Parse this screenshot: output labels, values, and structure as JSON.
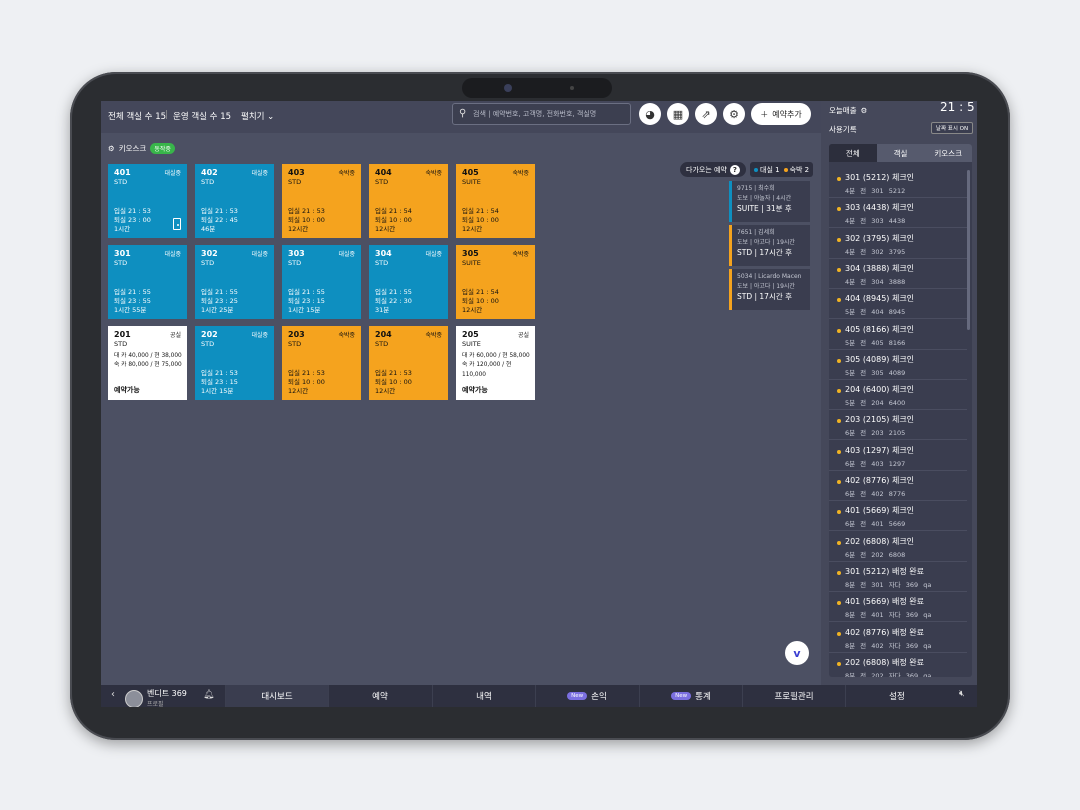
{
  "topbar": {
    "total_rooms": "전체 객실 수 15",
    "active_rooms": "운영 객실 수 15",
    "expand": "펼치기",
    "search_placeholder": "검색 | 예약번호, 고객명, 전화번호, 객실명",
    "add_reservation": "예약추가"
  },
  "kiosk": {
    "label": "키오스크",
    "badge": "동작중"
  },
  "tiles": [
    {
      "num": "401",
      "status": "대실중",
      "type": "STD",
      "color": "blue",
      "line1": "입실 21 : 53",
      "line2": "퇴실 23 : 00",
      "line3": "1시간",
      "door": true
    },
    {
      "num": "402",
      "status": "대실중",
      "type": "STD",
      "color": "blue",
      "line1": "입실 21 : 53",
      "line2": "퇴실 22 : 45",
      "line3": "46분"
    },
    {
      "num": "403",
      "status": "숙박중",
      "type": "STD",
      "color": "orange",
      "line1": "입실 21 : 53",
      "line2": "퇴실 10 : 00",
      "line3": "12시간"
    },
    {
      "num": "404",
      "status": "숙박중",
      "type": "STD",
      "color": "orange",
      "line1": "입실 21 : 54",
      "line2": "퇴실 10 : 00",
      "line3": "12시간"
    },
    {
      "num": "405",
      "status": "숙박중",
      "type": "SUITE",
      "color": "orange",
      "line1": "입실 21 : 54",
      "line2": "퇴실 10 : 00",
      "line3": "12시간"
    },
    {
      "num": "301",
      "status": "대실중",
      "type": "STD",
      "color": "blue",
      "line1": "입실 21 : 55",
      "line2": "퇴실 23 : 55",
      "line3": "1시간 55분"
    },
    {
      "num": "302",
      "status": "대실중",
      "type": "STD",
      "color": "blue",
      "line1": "입실 21 : 55",
      "line2": "퇴실 23 : 25",
      "line3": "1시간 25분"
    },
    {
      "num": "303",
      "status": "대실중",
      "type": "STD",
      "color": "blue",
      "line1": "입실 21 : 55",
      "line2": "퇴실 23 : 15",
      "line3": "1시간 15분"
    },
    {
      "num": "304",
      "status": "대실중",
      "type": "STD",
      "color": "blue",
      "line1": "입실 21 : 55",
      "line2": "퇴실 22 : 30",
      "line3": "31분"
    },
    {
      "num": "305",
      "status": "숙박중",
      "type": "SUITE",
      "color": "orange",
      "line1": "입실 21 : 54",
      "line2": "퇴실 10 : 00",
      "line3": "12시간"
    },
    {
      "num": "201",
      "status": "공실",
      "type": "STD",
      "color": "white",
      "price1": "대 카 40,000 / 현 38,000",
      "price2": "숙 카 80,000 / 현 75,000",
      "avail": "예약가능"
    },
    {
      "num": "202",
      "status": "대실중",
      "type": "STD",
      "color": "blue",
      "line1": "입실 21 : 53",
      "line2": "퇴실 23 : 15",
      "line3": "1시간 15분"
    },
    {
      "num": "203",
      "status": "숙박중",
      "type": "STD",
      "color": "orange",
      "line1": "입실 21 : 53",
      "line2": "퇴실 10 : 00",
      "line3": "12시간"
    },
    {
      "num": "204",
      "status": "숙박중",
      "type": "STD",
      "color": "orange",
      "line1": "입실 21 : 53",
      "line2": "퇴실 10 : 00",
      "line3": "12시간"
    },
    {
      "num": "205",
      "status": "공실",
      "type": "SUITE",
      "color": "white",
      "price1": "대 카 60,000 / 현 58,000",
      "price2": "숙 카 120,000 / 현 110,000",
      "avail": "예약가능"
    }
  ],
  "upcoming": {
    "label": "다가오는 예약",
    "legend_day": "대실 1",
    "legend_stay": "숙박 2",
    "cards": [
      {
        "line1": "9715 | 최수희",
        "line2": "도보 | 야놀자 | 4시간",
        "line3": "SUITE | 31분 후",
        "accent": "#0e8fc0"
      },
      {
        "line1": "7651 | 김세희",
        "line2": "도보 | 야고다 | 19시간",
        "line3": "STD | 17시간 후",
        "accent": "#f5a31e"
      },
      {
        "line1": "5034 | Licardo Macen",
        "line2": "도보 | 아고다 | 19시간",
        "line3": "STD | 17시간 후",
        "accent": "#f5a31e"
      }
    ]
  },
  "right_panel": {
    "sales_label": "오늘매출",
    "clock": "21 : 5",
    "log_label": "사용기록",
    "date_toggle": "날짜 표시 ON",
    "tabs": [
      "전체",
      "객실",
      "키오스크"
    ],
    "items": [
      {
        "title": "301 (5212) 체크인",
        "sub": "4분 전 301 5212"
      },
      {
        "title": "303 (4438) 체크인",
        "sub": "4분 전 303 4438"
      },
      {
        "title": "302 (3795) 체크인",
        "sub": "4분 전 302 3795"
      },
      {
        "title": "304 (3888) 체크인",
        "sub": "4분 전 304 3888"
      },
      {
        "title": "404 (8945) 체크인",
        "sub": "5분 전 404 8945"
      },
      {
        "title": "405 (8166) 체크인",
        "sub": "5분 전 405 8166"
      },
      {
        "title": "305 (4089) 체크인",
        "sub": "5분 전 305 4089"
      },
      {
        "title": "204 (6400) 체크인",
        "sub": "5분 전 204 6400"
      },
      {
        "title": "203 (2105) 체크인",
        "sub": "6분 전 203 2105"
      },
      {
        "title": "403 (1297) 체크인",
        "sub": "6분 전 403 1297"
      },
      {
        "title": "402 (8776) 체크인",
        "sub": "6분 전 402 8776"
      },
      {
        "title": "401 (5669) 체크인",
        "sub": "6분 전 401 5669"
      },
      {
        "title": "202 (6808) 체크인",
        "sub": "6분 전 202 6808"
      },
      {
        "title": "301 (5212) 배정 완료",
        "sub": "8분 전 301 자다 369 qa"
      },
      {
        "title": "401 (5669) 배정 완료",
        "sub": "8분 전 401 자다 369 qa"
      },
      {
        "title": "402 (8776) 배정 완료",
        "sub": "8분 전 402 자다 369 qa"
      },
      {
        "title": "202 (6808) 배정 완료",
        "sub": "8분 전 202 자다 369 qa"
      }
    ]
  },
  "bottombar": {
    "user_name": "벤디트 369",
    "user_sub": "프로필",
    "nav": [
      {
        "label": "대시보드",
        "active": true
      },
      {
        "label": "예약"
      },
      {
        "label": "내역"
      },
      {
        "label": "손익",
        "badge": "New"
      },
      {
        "label": "통계",
        "badge": "New"
      },
      {
        "label": "프로필관리"
      },
      {
        "label": "설정"
      }
    ]
  },
  "colors": {
    "blue": "#0e8fc0",
    "orange": "#f5a31e",
    "white": "#ffffff",
    "accent_dot": "#f0b323"
  }
}
